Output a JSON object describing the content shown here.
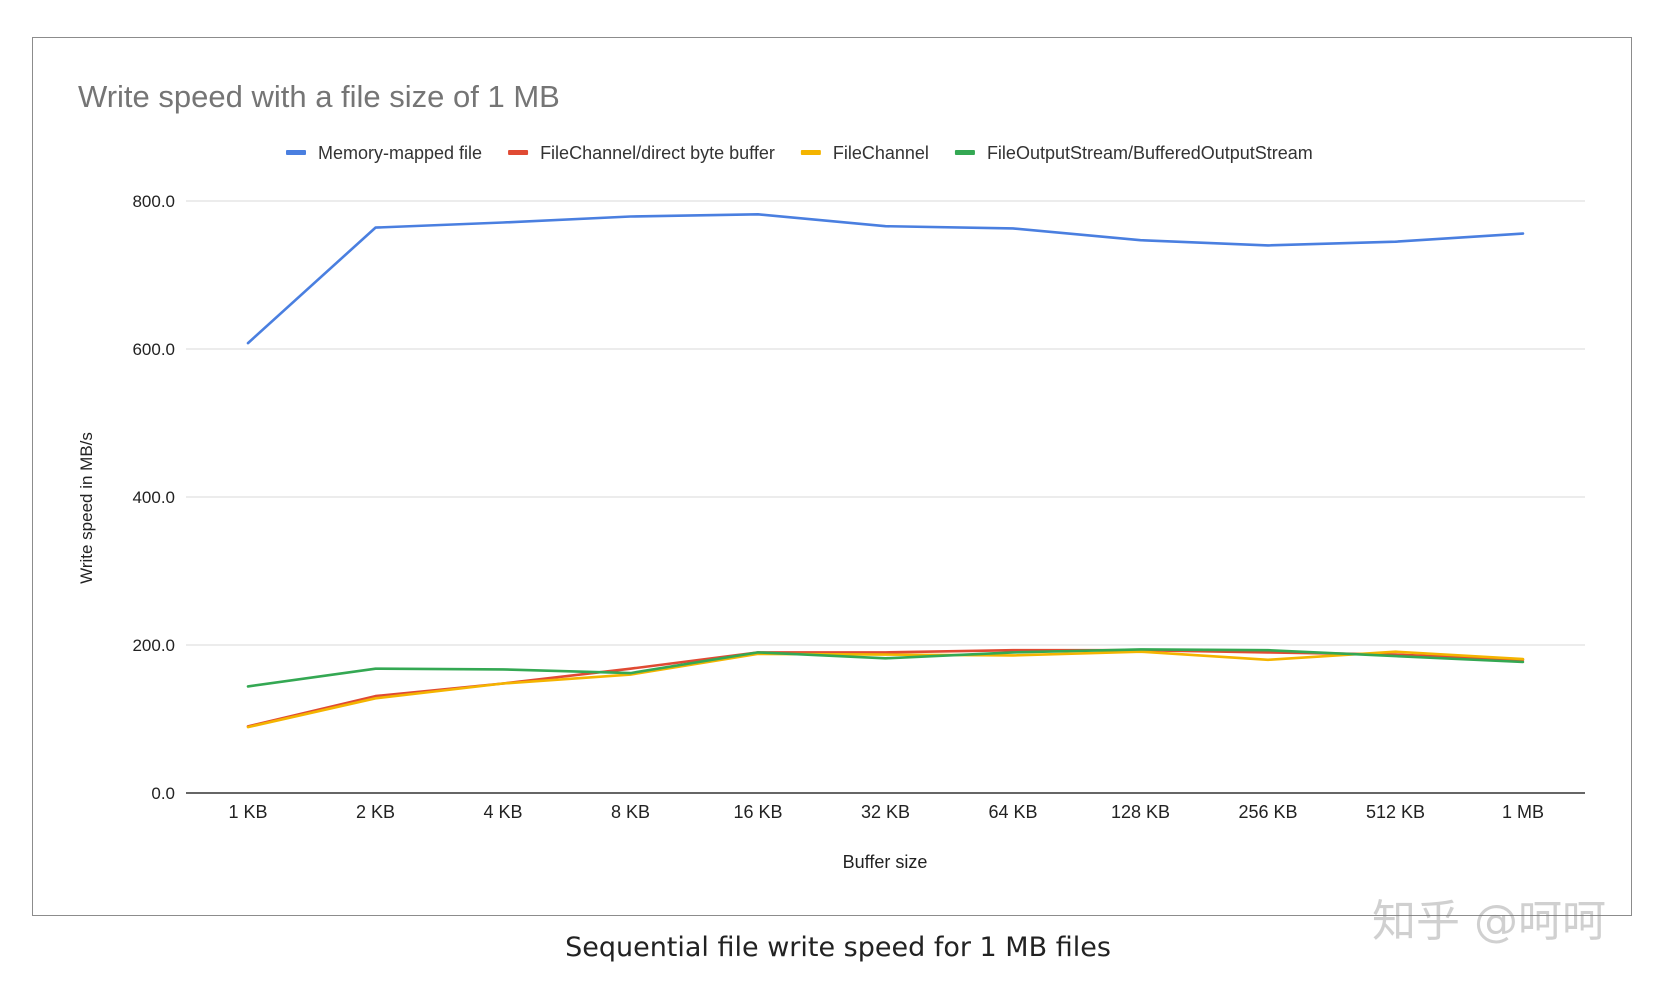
{
  "caption": "Sequential file write speed for 1 MB files",
  "watermark": "知乎 @呵呵",
  "chart_data": {
    "type": "line",
    "title": "Write speed with a file size of 1 MB",
    "xlabel": "Buffer size",
    "ylabel": "Write speed in MB/s",
    "ylim": [
      0,
      800
    ],
    "yticks": [
      "0.0",
      "200.0",
      "400.0",
      "600.0",
      "800.0"
    ],
    "grid": true,
    "legend_position": "top",
    "categories": [
      "1 KB",
      "2 KB",
      "4 KB",
      "8 KB",
      "16 KB",
      "32 KB",
      "64 KB",
      "128 KB",
      "256 KB",
      "512 KB",
      "1 MB"
    ],
    "series": [
      {
        "name": "Memory-mapped file",
        "color": "#4a7fe0",
        "values": [
          608,
          764,
          771,
          779,
          782,
          766,
          763,
          747,
          740,
          745,
          756
        ]
      },
      {
        "name": "FileChannel/direct byte buffer",
        "color": "#e04a33",
        "values": [
          90,
          131,
          148,
          168,
          190,
          190,
          193,
          193,
          190,
          187,
          180
        ]
      },
      {
        "name": "FileChannel",
        "color": "#f4b400",
        "values": [
          89,
          128,
          148,
          160,
          188,
          187,
          186,
          191,
          180,
          191,
          181
        ]
      },
      {
        "name": "FileOutputStream/BufferedOutputStream",
        "color": "#34a853",
        "values": [
          144,
          168,
          167,
          162,
          190,
          182,
          190,
          194,
          193,
          185,
          177
        ]
      }
    ]
  }
}
